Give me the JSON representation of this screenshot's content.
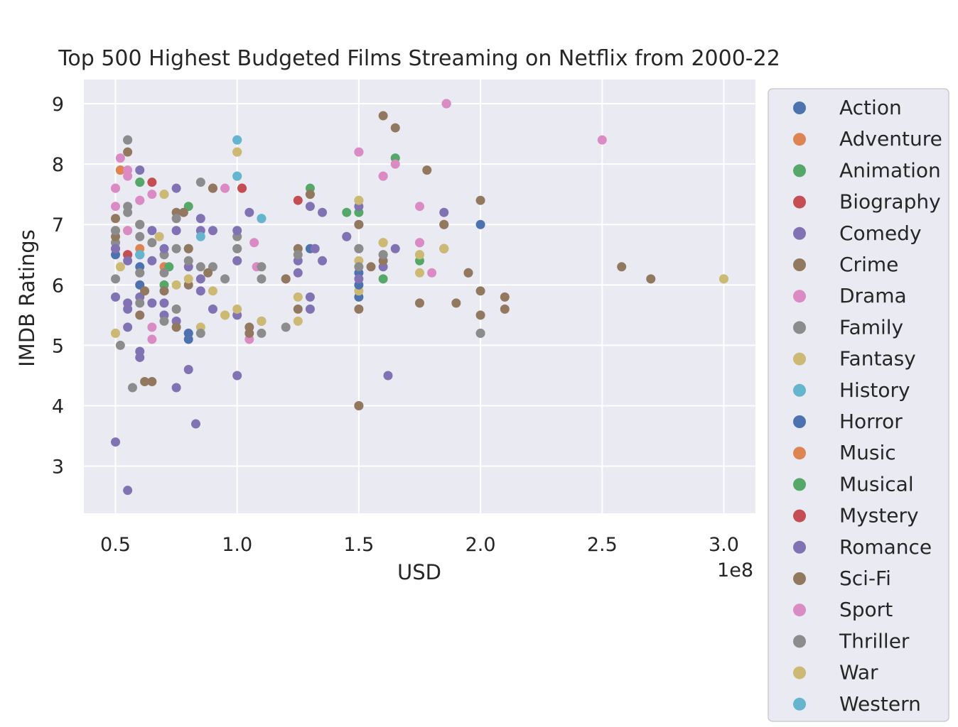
{
  "chart_data": {
    "type": "scatter",
    "title": "Top 500 Highest Budgeted Films Streaming on Netflix from 2000-22",
    "xlabel": "USD",
    "ylabel": "IMDB Ratings",
    "x_offset_label": "1e8",
    "xlim": [
      0.37,
      3.13
    ],
    "ylim": [
      2.22,
      9.4
    ],
    "x_ticks": [
      "0.5",
      "1.0",
      "1.5",
      "2.0",
      "2.5",
      "3.0"
    ],
    "y_ticks": [
      "3",
      "4",
      "5",
      "6",
      "7",
      "8",
      "9"
    ],
    "grid": true,
    "legend_position": "outside-right",
    "series": [
      {
        "name": "Action",
        "color": "#4c72b0",
        "points": [
          [
            0.8,
            5.1
          ],
          [
            1.5,
            5.8
          ],
          [
            1.5,
            6.2
          ],
          [
            2.0,
            7.0
          ],
          [
            1.3,
            6.6
          ],
          [
            0.6,
            6.3
          ],
          [
            1.86,
            9.0
          ]
        ]
      },
      {
        "name": "Adventure",
        "color": "#dd8452",
        "points": [
          [
            0.52,
            7.9
          ],
          [
            0.5,
            6.9
          ],
          [
            1.6,
            6.7
          ],
          [
            0.7,
            6.3
          ],
          [
            1.2,
            6.1
          ],
          [
            0.6,
            6.6
          ]
        ]
      },
      {
        "name": "Animation",
        "color": "#55a868",
        "points": [
          [
            0.6,
            7.7
          ],
          [
            0.8,
            7.3
          ],
          [
            1.3,
            7.6
          ],
          [
            1.45,
            7.2
          ],
          [
            1.65,
            8.1
          ],
          [
            0.72,
            6.3
          ],
          [
            0.7,
            6.0
          ],
          [
            1.75,
            6.4
          ],
          [
            1.6,
            6.1
          ]
        ]
      },
      {
        "name": "Biography",
        "color": "#c44e52",
        "points": [
          [
            0.65,
            7.7
          ],
          [
            0.9,
            7.6
          ],
          [
            1.02,
            7.6
          ],
          [
            1.25,
            7.4
          ],
          [
            0.55,
            6.5
          ]
        ]
      },
      {
        "name": "Comedy",
        "color": "#8172b3",
        "points": [
          [
            0.5,
            5.8
          ],
          [
            0.55,
            5.3
          ],
          [
            0.6,
            4.9
          ],
          [
            0.65,
            5.7
          ],
          [
            0.7,
            5.5
          ],
          [
            0.75,
            5.4
          ],
          [
            0.8,
            4.6
          ],
          [
            0.85,
            5.9
          ],
          [
            0.9,
            5.6
          ],
          [
            1.0,
            5.5
          ],
          [
            1.0,
            4.5
          ],
          [
            1.1,
            5.4
          ],
          [
            1.3,
            5.8
          ],
          [
            1.3,
            5.6
          ],
          [
            1.35,
            6.4
          ],
          [
            1.5,
            6.6
          ],
          [
            1.6,
            6.3
          ],
          [
            0.75,
            4.3
          ],
          [
            0.83,
            3.7
          ],
          [
            0.5,
            3.4
          ],
          [
            0.55,
            2.6
          ],
          [
            1.62,
            4.5
          ],
          [
            0.6,
            7.9
          ],
          [
            0.75,
            7.6
          ],
          [
            1.05,
            7.2
          ],
          [
            1.35,
            7.2
          ],
          [
            1.85,
            7.2
          ],
          [
            0.85,
            6.9
          ],
          [
            0.6,
            5.8
          ],
          [
            0.65,
            6.4
          ],
          [
            0.55,
            5.6
          ]
        ]
      },
      {
        "name": "Crime",
        "color": "#937860",
        "points": [
          [
            0.55,
            8.2
          ],
          [
            0.5,
            7.1
          ],
          [
            0.6,
            5.5
          ],
          [
            0.62,
            4.4
          ],
          [
            0.75,
            5.3
          ],
          [
            0.8,
            6.0
          ],
          [
            1.05,
            5.3
          ],
          [
            1.25,
            6.6
          ],
          [
            1.5,
            5.6
          ],
          [
            1.55,
            6.3
          ],
          [
            1.6,
            8.8
          ],
          [
            1.65,
            8.6
          ],
          [
            1.78,
            7.9
          ],
          [
            1.85,
            7.0
          ],
          [
            1.95,
            6.2
          ],
          [
            2.0,
            5.9
          ],
          [
            2.0,
            5.5
          ],
          [
            2.0,
            7.4
          ],
          [
            2.1,
            5.8
          ],
          [
            2.1,
            5.6
          ],
          [
            2.58,
            6.3
          ],
          [
            2.7,
            6.1
          ],
          [
            1.9,
            5.7
          ],
          [
            1.75,
            5.7
          ],
          [
            1.5,
            7.0
          ],
          [
            1.3,
            7.5
          ],
          [
            0.9,
            7.6
          ],
          [
            0.75,
            7.2
          ],
          [
            0.65,
            4.4
          ],
          [
            0.5,
            6.6
          ],
          [
            1.6,
            6.5
          ]
        ]
      },
      {
        "name": "Drama",
        "color": "#da8bc3",
        "points": [
          [
            0.5,
            7.6
          ],
          [
            0.52,
            8.1
          ],
          [
            0.55,
            7.8
          ],
          [
            0.6,
            7.4
          ],
          [
            0.65,
            7.5
          ],
          [
            0.5,
            7.3
          ],
          [
            0.95,
            7.6
          ],
          [
            1.0,
            8.4
          ],
          [
            1.0,
            8.2
          ],
          [
            1.07,
            6.7
          ],
          [
            1.08,
            6.3
          ],
          [
            1.05,
            5.1
          ],
          [
            0.65,
            5.1
          ],
          [
            0.65,
            5.3
          ],
          [
            1.5,
            8.2
          ],
          [
            1.6,
            7.8
          ],
          [
            1.65,
            8.0
          ],
          [
            1.75,
            7.3
          ],
          [
            1.75,
            6.7
          ],
          [
            1.8,
            6.2
          ],
          [
            1.86,
            9.0
          ],
          [
            2.5,
            8.4
          ],
          [
            0.55,
            6.9
          ]
        ]
      },
      {
        "name": "Family",
        "color": "#8c8c8c",
        "points": [
          [
            0.55,
            8.4
          ],
          [
            0.55,
            7.3
          ],
          [
            0.5,
            6.7
          ],
          [
            0.5,
            6.1
          ],
          [
            0.52,
            5.0
          ],
          [
            0.57,
            4.3
          ],
          [
            0.6,
            6.8
          ],
          [
            0.7,
            6.5
          ],
          [
            0.75,
            6.6
          ],
          [
            0.8,
            6.6
          ],
          [
            0.85,
            7.7
          ],
          [
            0.85,
            6.3
          ],
          [
            0.9,
            6.3
          ],
          [
            0.95,
            6.1
          ],
          [
            1.0,
            6.8
          ],
          [
            1.0,
            6.6
          ],
          [
            1.1,
            6.1
          ],
          [
            1.1,
            5.2
          ],
          [
            1.2,
            5.3
          ],
          [
            1.5,
            6.6
          ],
          [
            1.5,
            4.0
          ],
          [
            2.0,
            5.2
          ],
          [
            0.8,
            5.2
          ],
          [
            0.7,
            5.4
          ]
        ]
      },
      {
        "name": "Fantasy",
        "color": "#ccb974",
        "points": [
          [
            0.5,
            5.2
          ],
          [
            0.52,
            6.3
          ],
          [
            0.6,
            6.0
          ],
          [
            0.68,
            6.8
          ],
          [
            0.7,
            7.5
          ],
          [
            0.75,
            6.0
          ],
          [
            0.85,
            5.3
          ],
          [
            0.9,
            5.9
          ],
          [
            0.95,
            5.5
          ],
          [
            1.0,
            8.2
          ],
          [
            1.0,
            5.6
          ],
          [
            1.1,
            5.4
          ],
          [
            1.25,
            5.8
          ],
          [
            1.25,
            5.4
          ],
          [
            1.45,
            6.8
          ],
          [
            1.5,
            7.4
          ],
          [
            1.5,
            6.4
          ],
          [
            1.5,
            5.9
          ],
          [
            1.6,
            6.7
          ],
          [
            1.75,
            6.5
          ],
          [
            1.75,
            6.2
          ],
          [
            1.85,
            6.6
          ],
          [
            3.0,
            6.1
          ],
          [
            0.8,
            6.1
          ]
        ]
      },
      {
        "name": "History",
        "color": "#64b5cd",
        "points": [
          [
            1.0,
            8.4
          ],
          [
            1.0,
            7.8
          ],
          [
            1.1,
            7.1
          ],
          [
            0.6,
            6.5
          ],
          [
            0.85,
            6.8
          ]
        ]
      },
      {
        "name": "Horror",
        "color": "#4c72b0",
        "points": [
          [
            0.5,
            6.5
          ],
          [
            0.6,
            6.0
          ],
          [
            0.8,
            5.2
          ],
          [
            1.5,
            6.0
          ]
        ]
      },
      {
        "name": "Music",
        "color": "#dd8452",
        "points": [
          [
            0.52,
            7.9
          ],
          [
            1.0,
            6.4
          ]
        ]
      },
      {
        "name": "Musical",
        "color": "#55a868",
        "points": [
          [
            0.6,
            7.7
          ],
          [
            1.5,
            7.2
          ]
        ]
      },
      {
        "name": "Mystery",
        "color": "#c44e52",
        "points": [
          [
            0.55,
            6.5
          ],
          [
            1.02,
            7.6
          ],
          [
            0.6,
            7.0
          ]
        ]
      },
      {
        "name": "Romance",
        "color": "#8172b3",
        "points": [
          [
            0.5,
            6.6
          ],
          [
            0.55,
            5.7
          ],
          [
            0.6,
            4.8
          ],
          [
            0.6,
            6.2
          ],
          [
            0.65,
            6.9
          ],
          [
            0.7,
            6.6
          ],
          [
            0.75,
            6.9
          ],
          [
            0.8,
            6.3
          ],
          [
            0.85,
            7.1
          ],
          [
            0.85,
            6.1
          ],
          [
            0.9,
            6.9
          ],
          [
            1.0,
            6.9
          ],
          [
            1.0,
            6.4
          ],
          [
            1.25,
            6.4
          ],
          [
            1.25,
            6.2
          ],
          [
            1.3,
            7.3
          ],
          [
            1.32,
            6.6
          ],
          [
            1.45,
            6.8
          ],
          [
            1.5,
            7.3
          ],
          [
            1.5,
            6.1
          ],
          [
            1.65,
            6.6
          ],
          [
            1.85,
            6.6
          ],
          [
            0.7,
            5.7
          ],
          [
            0.55,
            6.4
          ]
        ]
      },
      {
        "name": "Sci-Fi",
        "color": "#937860",
        "points": [
          [
            0.5,
            6.8
          ],
          [
            0.6,
            6.5
          ],
          [
            0.7,
            5.9
          ],
          [
            0.78,
            7.2
          ],
          [
            0.8,
            6.6
          ],
          [
            0.88,
            6.2
          ],
          [
            1.05,
            5.2
          ],
          [
            1.2,
            6.1
          ],
          [
            1.25,
            5.6
          ],
          [
            1.3,
            7.5
          ],
          [
            1.5,
            7.0
          ],
          [
            1.6,
            6.4
          ],
          [
            1.85,
            7.0
          ],
          [
            1.95,
            6.2
          ],
          [
            0.62,
            5.9
          ],
          [
            1.5,
            4.0
          ]
        ]
      },
      {
        "name": "Sport",
        "color": "#da8bc3",
        "points": [
          [
            0.5,
            7.6
          ],
          [
            0.55,
            7.9
          ],
          [
            0.6,
            7.4
          ],
          [
            0.95,
            7.6
          ],
          [
            1.5,
            8.2
          ],
          [
            1.6,
            7.8
          ],
          [
            1.75,
            6.7
          ],
          [
            0.55,
            6.9
          ]
        ]
      },
      {
        "name": "Thriller",
        "color": "#8c8c8c",
        "points": [
          [
            0.55,
            8.4
          ],
          [
            0.5,
            6.9
          ],
          [
            0.55,
            7.2
          ],
          [
            0.6,
            7.0
          ],
          [
            0.6,
            6.2
          ],
          [
            0.6,
            5.7
          ],
          [
            0.65,
            6.7
          ],
          [
            0.7,
            6.2
          ],
          [
            0.75,
            5.6
          ],
          [
            0.8,
            6.4
          ],
          [
            0.85,
            5.2
          ],
          [
            1.0,
            6.6
          ],
          [
            1.1,
            6.3
          ],
          [
            1.25,
            6.5
          ],
          [
            1.5,
            6.3
          ],
          [
            1.6,
            6.5
          ],
          [
            2.0,
            5.2
          ],
          [
            0.75,
            7.1
          ]
        ]
      },
      {
        "name": "War",
        "color": "#ccb974",
        "points": [
          [
            0.5,
            5.2
          ],
          [
            0.7,
            7.5
          ],
          [
            1.0,
            8.2
          ],
          [
            0.95,
            5.5
          ],
          [
            1.5,
            7.4
          ],
          [
            1.75,
            6.5
          ],
          [
            1.85,
            6.6
          ],
          [
            3.0,
            6.1
          ]
        ]
      },
      {
        "name": "Western",
        "color": "#64b5cd",
        "points": [
          [
            1.0,
            8.4
          ],
          [
            1.0,
            7.8
          ],
          [
            1.1,
            7.1
          ],
          [
            0.6,
            6.5
          ]
        ]
      }
    ]
  }
}
